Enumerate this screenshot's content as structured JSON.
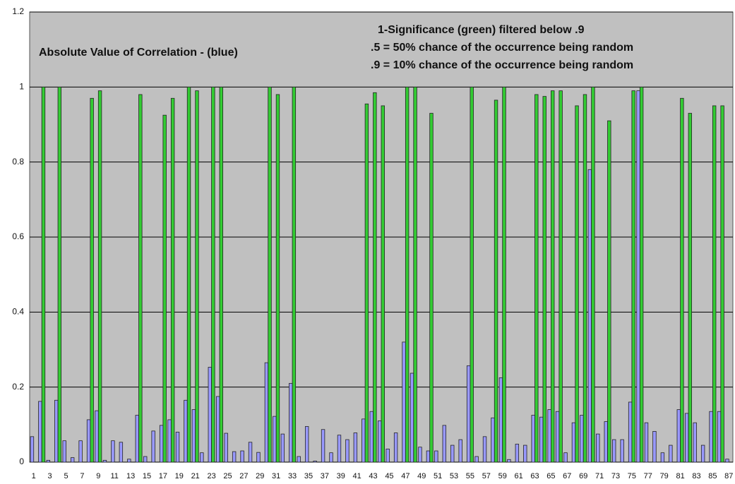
{
  "chart_data": {
    "type": "bar",
    "annotations": [
      "Absolute Value of Correlation - (blue)",
      "1-Significance (green) filtered below .9",
      ".5 = 50% chance of the occurrence being random",
      ".9 = 10% chance of the occurrence being random"
    ],
    "categories": [
      "1",
      null,
      "3",
      null,
      "5",
      null,
      "7",
      null,
      "9",
      null,
      "11",
      null,
      "13",
      null,
      "15",
      null,
      "17",
      null,
      "19",
      null,
      "21",
      null,
      "23",
      null,
      "25",
      null,
      "27",
      null,
      "29",
      null,
      "31",
      null,
      "33",
      null,
      "35",
      null,
      "37",
      null,
      "39",
      null,
      "41",
      null,
      "43",
      null,
      "45",
      null,
      "47",
      null,
      "49",
      null,
      "51",
      null,
      "53",
      null,
      "55",
      null,
      "57",
      null,
      "59",
      null,
      "61",
      null,
      "63",
      null,
      "65",
      null,
      "67",
      null,
      "69",
      null,
      "71",
      null,
      "73",
      null,
      "75",
      null,
      "77",
      null,
      "79",
      null,
      "81",
      null,
      "83",
      null,
      "85",
      null,
      "87"
    ],
    "series": [
      {
        "name": "Absolute Value of Correlation",
        "color": "#9999ff",
        "values": [
          0.068,
          0.162,
          0.005,
          0.165,
          0.057,
          0.012,
          0.057,
          0.113,
          0.137,
          0.005,
          0.057,
          0.053,
          0.008,
          0.125,
          0.015,
          0.083,
          0.098,
          0.113,
          0.08,
          0.165,
          0.14,
          0.025,
          0.253,
          0.175,
          0.077,
          0.028,
          0.03,
          0.053,
          0.026,
          0.265,
          0.122,
          0.075,
          0.21,
          0.015,
          0.095,
          0.003,
          0.087,
          0.025,
          0.072,
          0.06,
          0.078,
          0.115,
          0.135,
          0.11,
          0.035,
          0.078,
          0.32,
          0.237,
          0.04,
          0.03,
          0.03,
          0.098,
          0.045,
          0.06,
          0.257,
          0.015,
          0.068,
          0.118,
          0.225,
          0.007,
          0.048,
          0.045,
          0.125,
          0.12,
          0.14,
          0.135,
          0.025,
          0.105,
          0.125,
          0.78,
          0.075,
          0.108,
          0.06,
          0.06,
          0.16,
          0.99,
          0.105,
          0.082,
          0.025,
          0.045,
          0.14,
          0.13,
          0.105,
          0.045,
          0.135,
          0.135,
          0.008
        ]
      },
      {
        "name": "1-Significance",
        "color": "#33cc33",
        "values": [
          null,
          1,
          null,
          1,
          null,
          null,
          null,
          0.97,
          0.99,
          null,
          null,
          null,
          null,
          0.98,
          null,
          null,
          0.925,
          0.97,
          null,
          1,
          0.99,
          null,
          1,
          1,
          null,
          null,
          null,
          null,
          null,
          1,
          0.98,
          null,
          1,
          null,
          null,
          null,
          null,
          null,
          null,
          null,
          null,
          0.955,
          0.985,
          0.95,
          null,
          null,
          1,
          1,
          null,
          0.93,
          null,
          null,
          null,
          null,
          1,
          null,
          null,
          0.965,
          1,
          null,
          null,
          null,
          0.98,
          0.975,
          0.99,
          0.99,
          null,
          0.95,
          0.98,
          1,
          null,
          0.91,
          null,
          null,
          0.99,
          1,
          null,
          null,
          null,
          null,
          0.97,
          0.93,
          null,
          null,
          0.95,
          0.95,
          null
        ]
      }
    ],
    "ylim": [
      0,
      1.2
    ],
    "yticks": [
      0,
      0.2,
      0.4,
      0.6,
      0.8,
      1,
      1.2
    ],
    "grid": true,
    "plot_background": "#c0c0c0"
  }
}
